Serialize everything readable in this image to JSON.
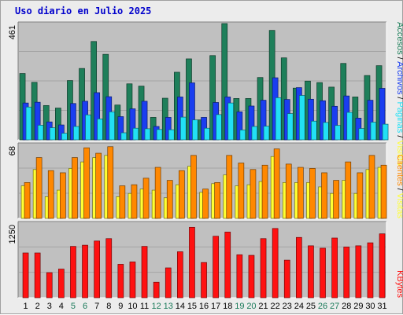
{
  "title": "Uso diario en Julio 2025",
  "colors": {
    "accesos": "#1e7f5a",
    "archivos": "#1a3ef0",
    "paginas": "#22e0f5",
    "visitas": "#ffff33",
    "clientes": "#ff8800",
    "kbytes": "#ff1111",
    "plot_bg": "#c0c0c0",
    "weekend_label": "#1a7a5a"
  },
  "panels": {
    "top": {
      "max_label": "461",
      "labels": [
        "Accesos",
        "Archivos",
        "Páginas",
        "Visitas"
      ],
      "separator": "/"
    },
    "middle": {
      "max_label": "68",
      "labels": [
        "Clientes",
        "Visitas"
      ],
      "separator": "/"
    },
    "bottom": {
      "max_label": "1250",
      "labels": [
        "KBytes"
      ]
    }
  },
  "chart_data": {
    "type": "bar",
    "title": "Uso diario en Julio 2025",
    "categories": [
      "1",
      "2",
      "3",
      "4",
      "5",
      "6",
      "7",
      "8",
      "9",
      "10",
      "11",
      "12",
      "13",
      "14",
      "15",
      "16",
      "17",
      "18",
      "19",
      "20",
      "21",
      "22",
      "23",
      "24",
      "25",
      "26",
      "27",
      "28",
      "29",
      "30",
      "31"
    ],
    "weekend_days": [
      "5",
      "6",
      "12",
      "13",
      "19",
      "20",
      "26",
      "27"
    ],
    "panels": [
      {
        "name": "top",
        "ylim": [
          0,
          461
        ],
        "series": [
          {
            "name": "Accesos",
            "values": [
              263,
              228,
              136,
              126,
              235,
              283,
              390,
              339,
              138,
              222,
              213,
              89,
              165,
              268,
              321,
              79,
              334,
              461,
              164,
              164,
              247,
              434,
              325,
              205,
              233,
              227,
              209,
              303,
              170,
              255,
              294
            ]
          },
          {
            "name": "Archivos",
            "values": [
              146,
              149,
              71,
              59,
              144,
              153,
              187,
              171,
              92,
              123,
              153,
              53,
              89,
              170,
              226,
              89,
              148,
              170,
              111,
              134,
              157,
              246,
              160,
              207,
              161,
              155,
              133,
              174,
              86,
              157,
              204
            ]
          },
          {
            "name": "Páginas",
            "values": [
              130,
              58,
              48,
              26,
              53,
              99,
              83,
              111,
              28,
              46,
              44,
              41,
              40,
              90,
              79,
              46,
              100,
              146,
              39,
              53,
              54,
              167,
              104,
              176,
              74,
              69,
              57,
              109,
              45,
              70,
              62
            ]
          }
        ]
      },
      {
        "name": "middle",
        "ylim": [
          0,
          68
        ],
        "series": [
          {
            "name": "Visitas",
            "values": [
              30,
              45,
              20,
              26,
              46,
              52,
              56,
              58,
              20,
              23,
              27,
              26,
              19,
              31,
              48,
              24,
              32,
              40,
              30,
              31,
              34,
              57,
              33,
              33,
              33,
              29,
              23,
              35,
              23,
              45,
              47
            ]
          },
          {
            "name": "Clientes",
            "values": [
              33,
              56,
              44,
              42,
              56,
              65,
              60,
              66,
              30,
              31,
              37,
              47,
              35,
              44,
              58,
              27,
              33,
              58,
              51,
              45,
              49,
              64,
              50,
              47,
              46,
              42,
              35,
              52,
              42,
              58,
              49
            ]
          }
        ]
      },
      {
        "name": "bottom",
        "ylim": [
          0,
          1250
        ],
        "series": [
          {
            "name": "KBytes",
            "values": [
              750,
              750,
              420,
              480,
              860,
              880,
              950,
              990,
              560,
              600,
              860,
              260,
              500,
              770,
              1180,
              590,
              1030,
              1100,
              720,
              710,
              990,
              1160,
              630,
              1010,
              870,
              830,
              1000,
              850,
              870,
              920,
              1070
            ]
          }
        ]
      }
    ]
  }
}
